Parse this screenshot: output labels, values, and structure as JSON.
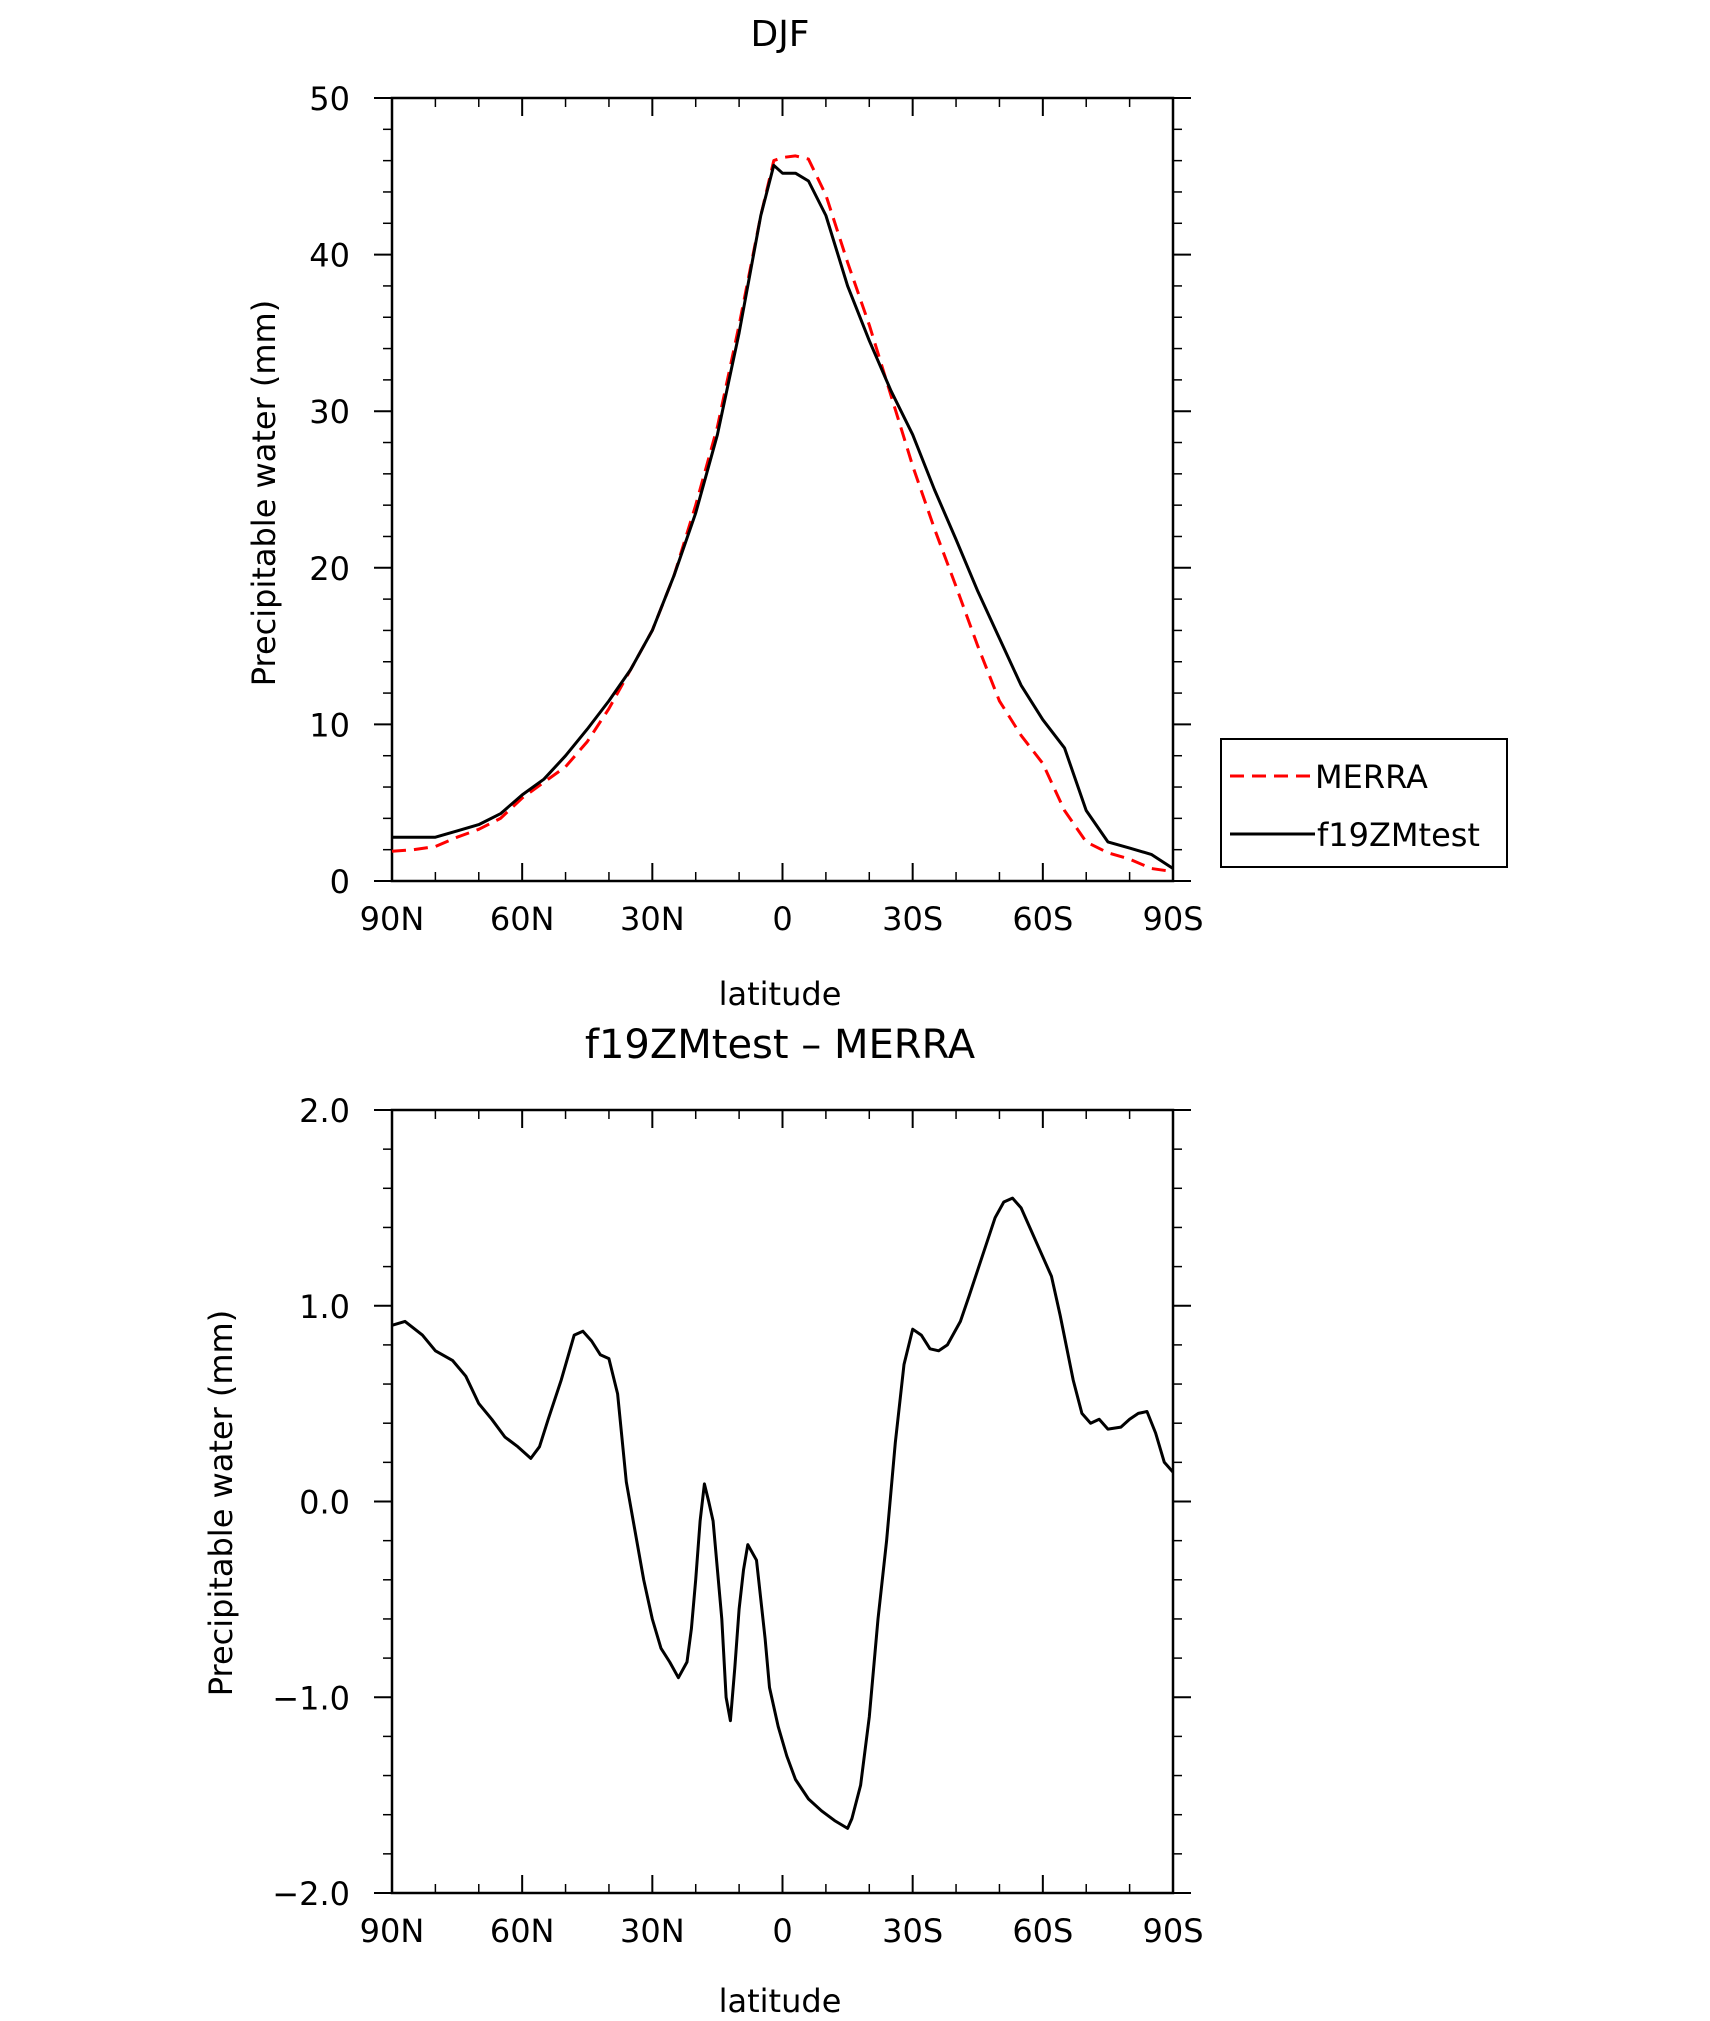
{
  "chart_data": [
    {
      "type": "line",
      "title": "DJF",
      "xlabel": "latitude",
      "ylabel": "Precipitable water (mm)",
      "xlim": [
        90,
        -90
      ],
      "ylim": [
        0,
        50
      ],
      "x_ticks": [
        90,
        60,
        30,
        0,
        -30,
        -60,
        -90
      ],
      "x_tick_labels": [
        "90N",
        "60N",
        "30N",
        "0",
        "30S",
        "60S",
        "90S"
      ],
      "y_ticks": [
        0,
        10,
        20,
        30,
        40,
        50
      ],
      "y_tick_labels": [
        "0",
        "10",
        "20",
        "30",
        "40",
        "50"
      ],
      "legend": {
        "placement": "right"
      },
      "series": [
        {
          "name": "MERRA",
          "color": "#ff0000",
          "dash": "dashed",
          "x": [
            90,
            85,
            80,
            75,
            70,
            65,
            60,
            55,
            50,
            45,
            40,
            35,
            30,
            25,
            20,
            15,
            10,
            5,
            2,
            0,
            -3,
            -6,
            -10,
            -15,
            -20,
            -25,
            -30,
            -35,
            -40,
            -45,
            -50,
            -55,
            -60,
            -65,
            -70,
            -75,
            -80,
            -85,
            -90
          ],
          "y": [
            1.9,
            2.0,
            2.2,
            2.8,
            3.3,
            4.0,
            5.3,
            6.3,
            7.3,
            8.9,
            11.0,
            13.5,
            16.0,
            19.5,
            24.0,
            29.0,
            35.5,
            42.5,
            46.0,
            46.2,
            46.3,
            46.1,
            43.8,
            39.5,
            35.5,
            31.0,
            26.5,
            22.5,
            18.8,
            15.0,
            11.5,
            9.3,
            7.5,
            4.5,
            2.5,
            1.8,
            1.4,
            0.8,
            0.6
          ]
        },
        {
          "name": "f19ZMtest",
          "color": "#000000",
          "dash": "solid",
          "x": [
            90,
            85,
            80,
            75,
            70,
            65,
            60,
            55,
            50,
            45,
            40,
            35,
            30,
            25,
            20,
            15,
            10,
            5,
            2,
            0,
            -3,
            -6,
            -10,
            -15,
            -20,
            -25,
            -30,
            -35,
            -40,
            -45,
            -50,
            -55,
            -60,
            -65,
            -70,
            -75,
            -80,
            -85,
            -90
          ],
          "y": [
            2.8,
            2.8,
            2.8,
            3.2,
            3.6,
            4.3,
            5.5,
            6.5,
            8.0,
            9.7,
            11.5,
            13.5,
            16.0,
            19.5,
            23.5,
            28.5,
            35.0,
            42.5,
            45.7,
            45.2,
            45.2,
            44.7,
            42.5,
            38.0,
            34.5,
            31.3,
            28.5,
            25.0,
            21.8,
            18.5,
            15.5,
            12.5,
            10.3,
            8.5,
            4.5,
            2.5,
            2.1,
            1.7,
            0.8
          ]
        }
      ]
    },
    {
      "type": "line",
      "title": "f19ZMtest – MERRA",
      "xlabel": "latitude",
      "ylabel": "Precipitable water (mm)",
      "xlim": [
        90,
        -90
      ],
      "ylim": [
        -2.0,
        2.0
      ],
      "x_ticks": [
        90,
        60,
        30,
        0,
        -30,
        -60,
        -90
      ],
      "x_tick_labels": [
        "90N",
        "60N",
        "30N",
        "0",
        "30S",
        "60S",
        "90S"
      ],
      "y_ticks": [
        2.0,
        1.0,
        0.0,
        -1.0,
        -2.0
      ],
      "y_tick_labels": [
        "2.0",
        "1.0",
        "0.0",
        "−1.0",
        "−2.0"
      ],
      "series": [
        {
          "color": "#000000",
          "dash": "solid",
          "x": [
            90,
            87,
            83,
            80,
            76,
            73,
            70,
            67,
            64,
            61,
            58,
            56,
            54,
            51,
            48,
            46,
            44,
            42,
            40,
            38,
            36,
            34,
            32,
            30,
            28,
            26,
            24,
            22,
            21,
            20,
            19,
            18,
            17,
            16,
            14,
            13,
            12,
            11,
            10,
            9,
            8,
            6,
            4,
            3,
            1,
            -1,
            -3,
            -6,
            -9,
            -12,
            -15,
            -16,
            -18,
            -20,
            -22,
            -24,
            -26,
            -28,
            -30,
            -32,
            -34,
            -36,
            -38,
            -41,
            -43,
            -46,
            -49,
            -51,
            -53,
            -55,
            -57,
            -60,
            -62,
            -64,
            -67,
            -69,
            -71,
            -73,
            -75,
            -78,
            -80,
            -82,
            -84,
            -86,
            -88,
            -90
          ],
          "y": [
            0.9,
            0.92,
            0.85,
            0.77,
            0.72,
            0.64,
            0.5,
            0.42,
            0.33,
            0.28,
            0.22,
            0.28,
            0.42,
            0.62,
            0.85,
            0.87,
            0.82,
            0.75,
            0.73,
            0.55,
            0.1,
            -0.15,
            -0.4,
            -0.6,
            -0.75,
            -0.82,
            -0.9,
            -0.82,
            -0.65,
            -0.4,
            -0.1,
            0.09,
            0.0,
            -0.1,
            -0.6,
            -1.0,
            -1.12,
            -0.85,
            -0.55,
            -0.35,
            -0.22,
            -0.3,
            -0.7,
            -0.95,
            -1.15,
            -1.3,
            -1.42,
            -1.52,
            -1.58,
            -1.63,
            -1.67,
            -1.62,
            -1.45,
            -1.1,
            -0.6,
            -0.2,
            0.3,
            0.7,
            0.88,
            0.85,
            0.78,
            0.77,
            0.8,
            0.92,
            1.05,
            1.25,
            1.45,
            1.53,
            1.55,
            1.5,
            1.4,
            1.25,
            1.15,
            0.95,
            0.62,
            0.45,
            0.4,
            0.42,
            0.37,
            0.38,
            0.42,
            0.45,
            0.46,
            0.35,
            0.2,
            0.15
          ]
        }
      ]
    }
  ],
  "legend_items": [
    {
      "label": "MERRA",
      "color": "#ff0000",
      "dash": "dashed"
    },
    {
      "label": "f19ZMtest",
      "color": "#000000",
      "dash": "solid"
    }
  ]
}
